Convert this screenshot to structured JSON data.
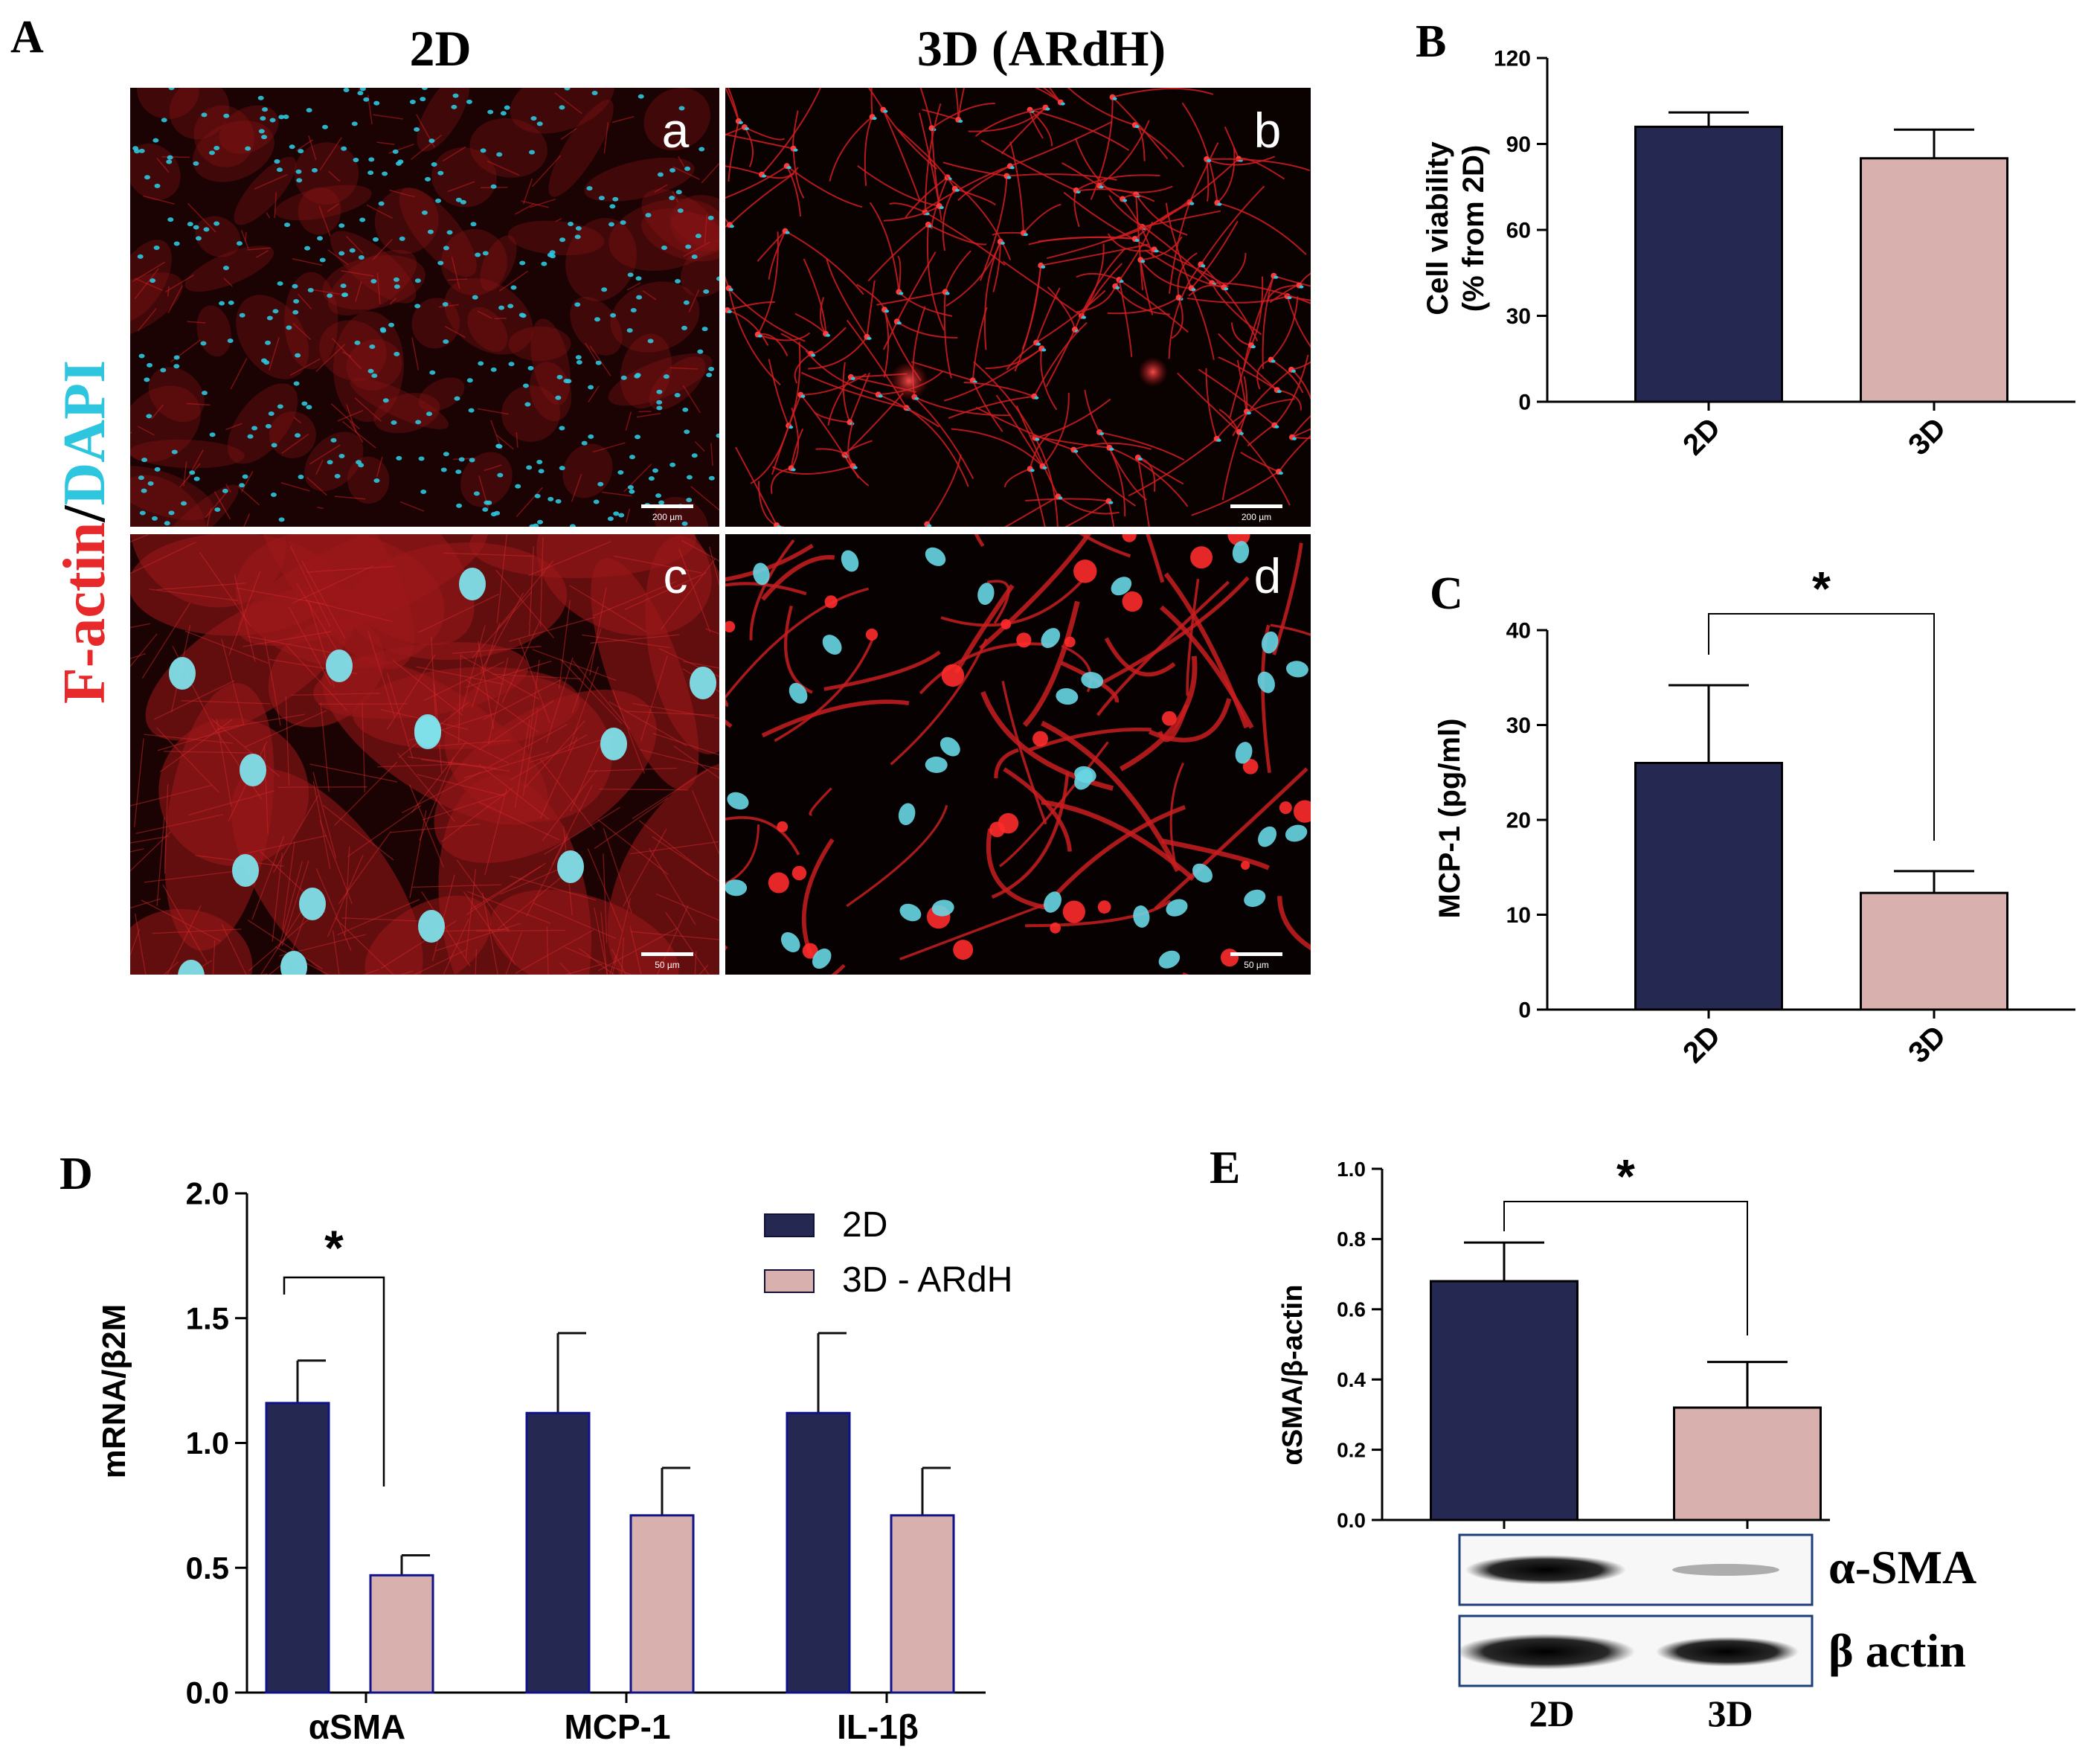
{
  "panel_a": {
    "letter": "A",
    "col_headers": [
      "2D",
      "3D (ARdH)"
    ],
    "stain_red": "F-actin",
    "stain_sep": "/",
    "stain_cyan": "DAPI",
    "sub_labels": [
      "a",
      "b",
      "c",
      "d"
    ],
    "scale_bars": [
      "200 µm",
      "200 µm",
      "50 µm",
      "50 µm"
    ]
  },
  "colors": {
    "bar_2d": "#252952",
    "bar_3d": "#d8b0ae",
    "red": "#e8292b",
    "cyan": "#2ec6de",
    "blot_border": "#1c3f7a"
  },
  "blot": {
    "band_labels": [
      "α-SMA",
      "β actin"
    ],
    "lane_labels": [
      "2D",
      "3D"
    ]
  },
  "chart_data": [
    {
      "id": "B",
      "letter": "B",
      "type": "bar",
      "categories": [
        "2D",
        "3D"
      ],
      "values": [
        96,
        85
      ],
      "errors": [
        5,
        10
      ],
      "ylabel_line1": "Cell viability",
      "ylabel_line2": "(% from 2D)",
      "ylim": [
        0,
        120
      ],
      "yticks": [
        "0",
        "30",
        "60",
        "90",
        "120"
      ],
      "yticks_num": [
        0,
        30,
        60,
        90,
        120
      ],
      "significance": ""
    },
    {
      "id": "C",
      "letter": "C",
      "type": "bar",
      "categories": [
        "2D",
        "3D"
      ],
      "values": [
        26,
        12.3
      ],
      "errors": [
        8.2,
        2.3
      ],
      "ylabel_line1": "MCP-1 (pg/ml)",
      "ylabel_line2": "",
      "ylim": [
        0,
        40
      ],
      "yticks": [
        "0",
        "10",
        "20",
        "30",
        "40"
      ],
      "yticks_num": [
        0,
        10,
        20,
        30,
        40
      ],
      "significance": "*"
    },
    {
      "id": "D",
      "letter": "D",
      "type": "bar",
      "categories": [
        "αSMA",
        "MCP-1",
        "IL-1β"
      ],
      "series": [
        {
          "name": "2D",
          "values": [
            1.16,
            1.12,
            1.12
          ],
          "errors": [
            0.17,
            0.32,
            0.32
          ]
        },
        {
          "name": "3D - ARdH",
          "values": [
            0.47,
            0.71,
            0.71
          ],
          "errors": [
            0.08,
            0.19,
            0.19
          ]
        }
      ],
      "ylabel": "mRNA/β2M",
      "ylim": [
        0,
        2.0
      ],
      "yticks": [
        "0.0",
        "0.5",
        "1.0",
        "1.5",
        "2.0"
      ],
      "yticks_num": [
        0,
        0.5,
        1.0,
        1.5,
        2.0
      ],
      "significance": "*",
      "legend": "top-right"
    },
    {
      "id": "E",
      "letter": "E",
      "type": "bar",
      "categories": [
        "2D",
        "3D"
      ],
      "values": [
        0.68,
        0.32
      ],
      "errors": [
        0.11,
        0.13
      ],
      "ylabel": "αSMA/β-actin",
      "ylim": [
        0,
        1.0
      ],
      "yticks": [
        "0.0",
        "0.2",
        "0.4",
        "0.6",
        "0.8",
        "1.0"
      ],
      "yticks_num": [
        0,
        0.2,
        0.4,
        0.6,
        0.8,
        1.0
      ],
      "significance": "*"
    }
  ]
}
